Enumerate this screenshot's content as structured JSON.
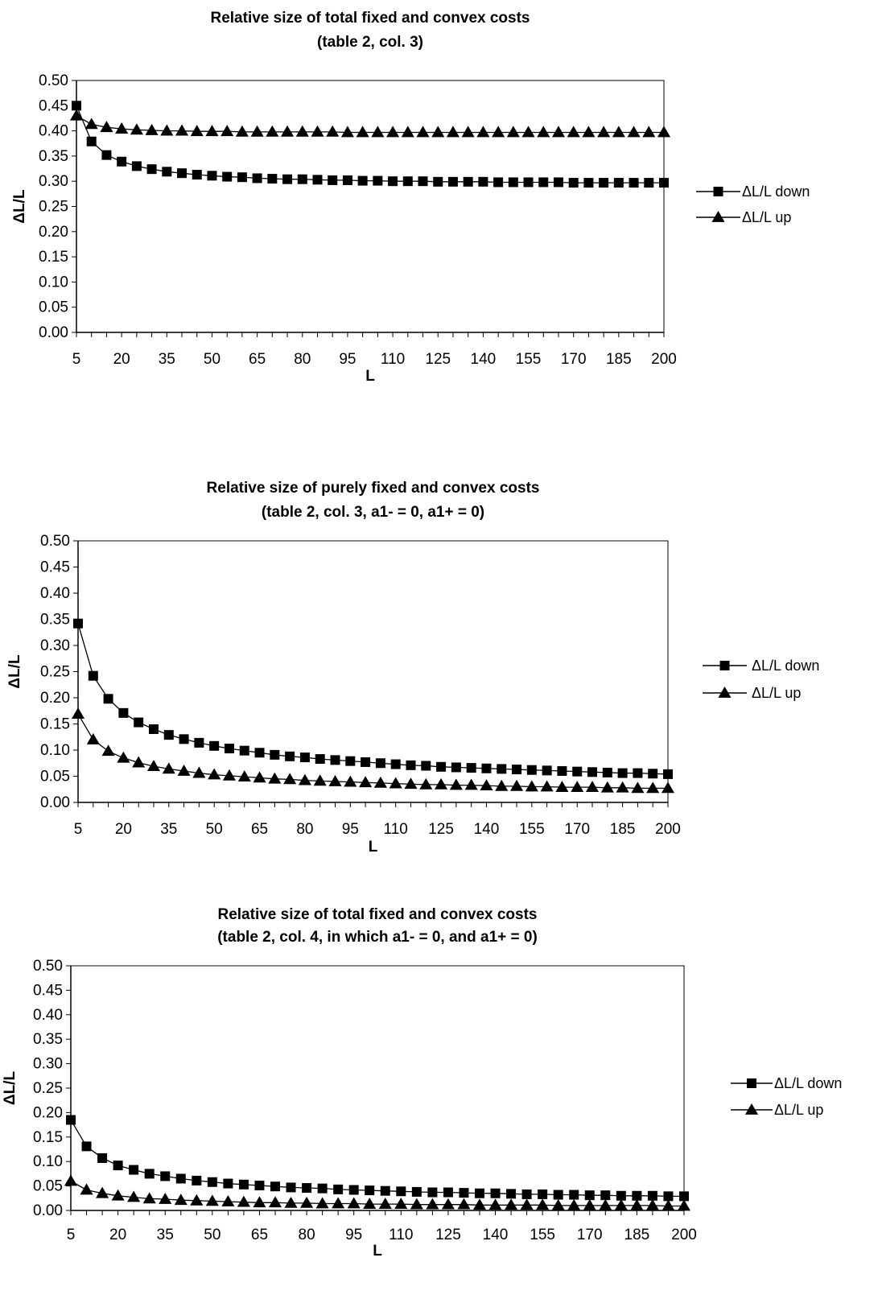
{
  "chart_data": [
    {
      "type": "line",
      "title": "Relative size of total fixed and convex costs",
      "subtitle": "(table 2, col. 3)",
      "xlabel": "L",
      "ylabel": "ΔL/L",
      "x": [
        5,
        10,
        15,
        20,
        25,
        30,
        35,
        40,
        45,
        50,
        55,
        60,
        65,
        70,
        75,
        80,
        85,
        90,
        95,
        100,
        105,
        110,
        115,
        120,
        125,
        130,
        135,
        140,
        145,
        150,
        155,
        160,
        165,
        170,
        175,
        180,
        185,
        190,
        195,
        200
      ],
      "x_tick_labels": [
        "5",
        "20",
        "35",
        "50",
        "65",
        "80",
        "95",
        "110",
        "125",
        "140",
        "155",
        "170",
        "185",
        "200"
      ],
      "y_tick_labels": [
        "0.00",
        "0.05",
        "0.10",
        "0.15",
        "0.20",
        "0.25",
        "0.30",
        "0.35",
        "0.40",
        "0.45",
        "0.50"
      ],
      "ylim": [
        0,
        0.5
      ],
      "grid": false,
      "legend": "right",
      "series": [
        {
          "name": "ΔL/L down",
          "marker": "square",
          "values": [
            0.45,
            0.379,
            0.352,
            0.339,
            0.33,
            0.324,
            0.319,
            0.316,
            0.313,
            0.311,
            0.309,
            0.308,
            0.306,
            0.305,
            0.304,
            0.304,
            0.303,
            0.302,
            0.302,
            0.301,
            0.301,
            0.3,
            0.3,
            0.3,
            0.299,
            0.299,
            0.299,
            0.299,
            0.298,
            0.298,
            0.298,
            0.298,
            0.298,
            0.297,
            0.297,
            0.297,
            0.297,
            0.297,
            0.297,
            0.297
          ]
        },
        {
          "name": "ΔL/L up",
          "marker": "triangle",
          "values": [
            0.43,
            0.413,
            0.407,
            0.404,
            0.402,
            0.401,
            0.4,
            0.4,
            0.399,
            0.399,
            0.399,
            0.398,
            0.398,
            0.398,
            0.398,
            0.398,
            0.398,
            0.398,
            0.397,
            0.397,
            0.397,
            0.397,
            0.397,
            0.397,
            0.397,
            0.397,
            0.397,
            0.397,
            0.397,
            0.397,
            0.397,
            0.397,
            0.397,
            0.397,
            0.397,
            0.397,
            0.397,
            0.397,
            0.397,
            0.397
          ]
        }
      ]
    },
    {
      "type": "line",
      "title": "Relative size of purely fixed and convex costs",
      "subtitle": "(table 2, col. 3, a1- = 0, a1+ = 0)",
      "xlabel": "L",
      "ylabel": "ΔL/L",
      "x": [
        5,
        10,
        15,
        20,
        25,
        30,
        35,
        40,
        45,
        50,
        55,
        60,
        65,
        70,
        75,
        80,
        85,
        90,
        95,
        100,
        105,
        110,
        115,
        120,
        125,
        130,
        135,
        140,
        145,
        150,
        155,
        160,
        165,
        170,
        175,
        180,
        185,
        190,
        195,
        200
      ],
      "x_tick_labels": [
        "5",
        "20",
        "35",
        "50",
        "65",
        "80",
        "95",
        "110",
        "125",
        "140",
        "155",
        "170",
        "185",
        "200"
      ],
      "y_tick_labels": [
        "0.00",
        "0.05",
        "0.10",
        "0.15",
        "0.20",
        "0.25",
        "0.30",
        "0.35",
        "0.40",
        "0.45",
        "0.50"
      ],
      "ylim": [
        0,
        0.5
      ],
      "grid": false,
      "legend": "right",
      "series": [
        {
          "name": "ΔL/L down",
          "marker": "square",
          "values": [
            0.342,
            0.242,
            0.198,
            0.171,
            0.153,
            0.14,
            0.129,
            0.121,
            0.114,
            0.108,
            0.103,
            0.099,
            0.095,
            0.091,
            0.088,
            0.086,
            0.083,
            0.081,
            0.079,
            0.077,
            0.075,
            0.073,
            0.071,
            0.07,
            0.068,
            0.067,
            0.066,
            0.065,
            0.064,
            0.063,
            0.062,
            0.061,
            0.06,
            0.059,
            0.058,
            0.057,
            0.056,
            0.056,
            0.055,
            0.054
          ]
        },
        {
          "name": "ΔL/L up",
          "marker": "triangle",
          "values": [
            0.169,
            0.12,
            0.098,
            0.085,
            0.076,
            0.069,
            0.064,
            0.06,
            0.056,
            0.053,
            0.051,
            0.049,
            0.047,
            0.045,
            0.044,
            0.042,
            0.041,
            0.04,
            0.039,
            0.038,
            0.037,
            0.036,
            0.035,
            0.034,
            0.034,
            0.033,
            0.033,
            0.032,
            0.031,
            0.031,
            0.03,
            0.03,
            0.029,
            0.029,
            0.029,
            0.028,
            0.028,
            0.027,
            0.027,
            0.027
          ]
        }
      ]
    },
    {
      "type": "line",
      "title": "Relative size of total fixed and convex costs",
      "subtitle": "(table 2, col. 4, in which a1- = 0, and a1+ = 0)",
      "xlabel": "L",
      "ylabel": "ΔL/L",
      "x": [
        5,
        10,
        15,
        20,
        25,
        30,
        35,
        40,
        45,
        50,
        55,
        60,
        65,
        70,
        75,
        80,
        85,
        90,
        95,
        100,
        105,
        110,
        115,
        120,
        125,
        130,
        135,
        140,
        145,
        150,
        155,
        160,
        165,
        170,
        175,
        180,
        185,
        190,
        195,
        200
      ],
      "x_tick_labels": [
        "5",
        "20",
        "35",
        "50",
        "65",
        "80",
        "95",
        "110",
        "125",
        "140",
        "155",
        "170",
        "185",
        "200"
      ],
      "y_tick_labels": [
        "0.00",
        "0.05",
        "0.10",
        "0.15",
        "0.20",
        "0.25",
        "0.30",
        "0.35",
        "0.40",
        "0.45",
        "0.50"
      ],
      "ylim": [
        0,
        0.5
      ],
      "grid": false,
      "legend": "right",
      "series": [
        {
          "name": "ΔL/L down",
          "marker": "square",
          "values": [
            0.185,
            0.131,
            0.107,
            0.092,
            0.083,
            0.075,
            0.07,
            0.065,
            0.061,
            0.058,
            0.055,
            0.053,
            0.051,
            0.049,
            0.047,
            0.046,
            0.045,
            0.043,
            0.042,
            0.041,
            0.04,
            0.039,
            0.038,
            0.037,
            0.037,
            0.036,
            0.035,
            0.035,
            0.034,
            0.033,
            0.033,
            0.032,
            0.032,
            0.031,
            0.031,
            0.03,
            0.03,
            0.03,
            0.029,
            0.029
          ]
        },
        {
          "name": "ΔL/L up",
          "marker": "triangle",
          "values": [
            0.06,
            0.042,
            0.035,
            0.03,
            0.027,
            0.024,
            0.023,
            0.021,
            0.02,
            0.019,
            0.018,
            0.017,
            0.016,
            0.016,
            0.015,
            0.015,
            0.014,
            0.014,
            0.014,
            0.013,
            0.013,
            0.013,
            0.012,
            0.012,
            0.012,
            0.012,
            0.011,
            0.011,
            0.011,
            0.011,
            0.011,
            0.01,
            0.01,
            0.01,
            0.01,
            0.01,
            0.01,
            0.01,
            0.009,
            0.009
          ]
        }
      ]
    }
  ]
}
